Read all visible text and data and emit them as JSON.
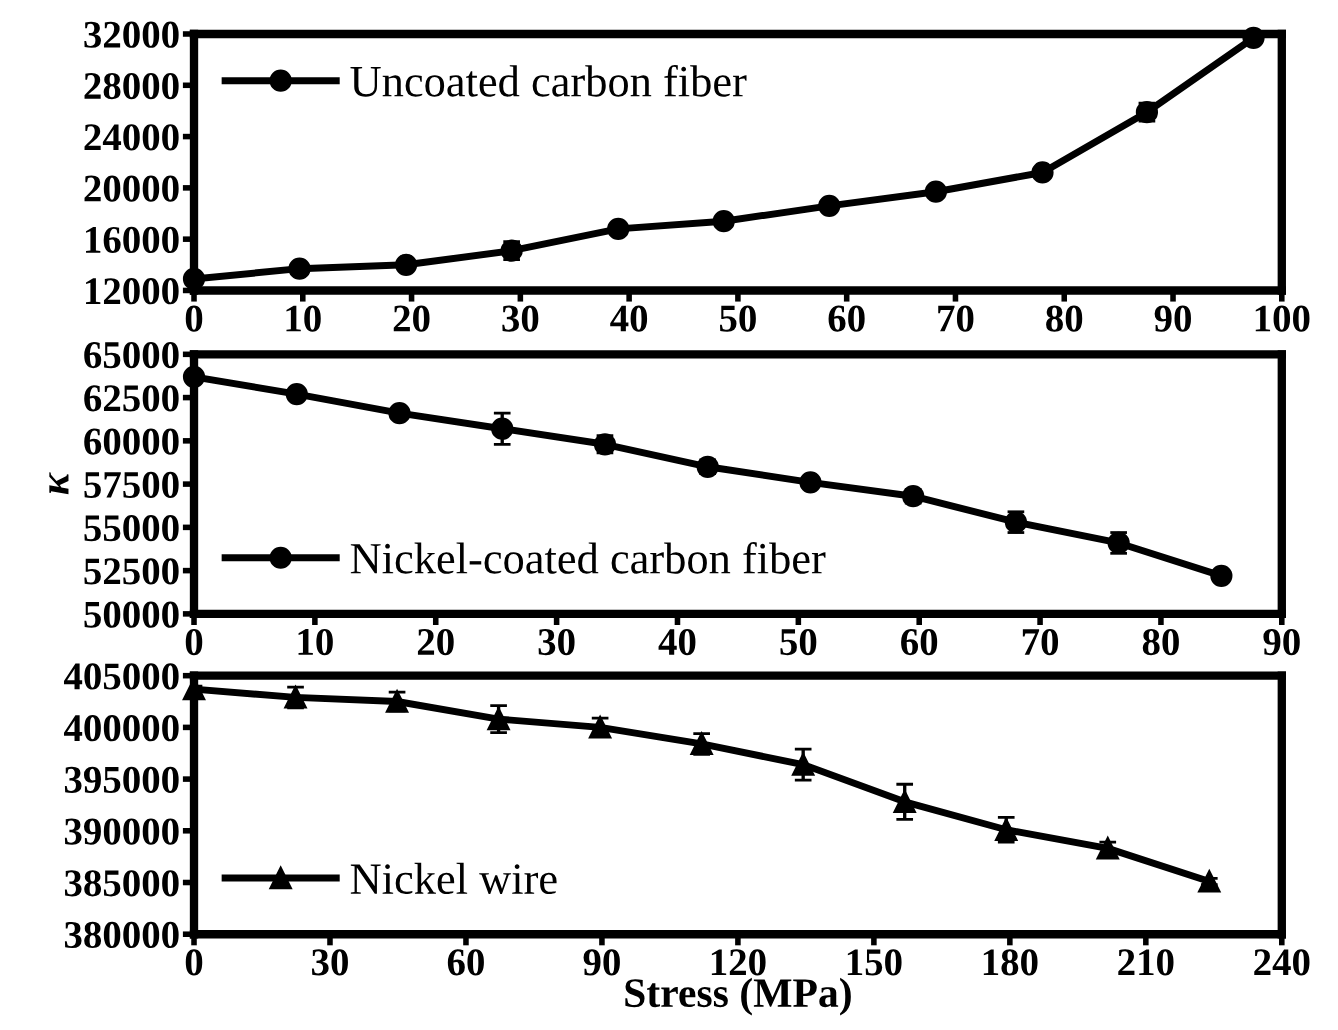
{
  "chart_data": [
    {
      "type": "line",
      "x": [
        0,
        9.7,
        19.5,
        29.2,
        39,
        48.7,
        58.4,
        68.2,
        78,
        87.6,
        97.4
      ],
      "xlim": [
        0,
        100
      ],
      "xticks": [
        0,
        10,
        20,
        30,
        40,
        50,
        60,
        70,
        80,
        90,
        100
      ],
      "ylim": [
        12000,
        32000
      ],
      "yticks": [
        12000,
        16000,
        20000,
        24000,
        28000,
        32000
      ],
      "marker": "circle",
      "legend": "top left",
      "series": [
        {
          "name": "Uncoated carbon fiber",
          "color": "#000000",
          "values": [
            12900,
            13700,
            14000,
            15100,
            16800,
            17400,
            18600,
            19700,
            21200,
            25900,
            31700
          ],
          "errors": [
            300,
            300,
            300,
            700,
            300,
            300,
            300,
            300,
            300,
            700,
            300
          ]
        }
      ]
    },
    {
      "type": "line",
      "ylabel": "κ",
      "x": [
        0,
        8.5,
        17,
        25.5,
        34,
        42.5,
        51,
        59.5,
        68,
        76.5,
        85
      ],
      "xlim": [
        0,
        90
      ],
      "xticks": [
        0,
        10,
        20,
        30,
        40,
        50,
        60,
        70,
        80,
        90
      ],
      "ylim": [
        50000,
        65000
      ],
      "yticks": [
        50000,
        52500,
        55000,
        57500,
        60000,
        62500,
        65000
      ],
      "marker": "circle",
      "legend": "bottom left",
      "series": [
        {
          "name": "Nickel-coated carbon fiber",
          "color": "#000000",
          "values": [
            63700,
            62700,
            61600,
            60700,
            59800,
            58500,
            57600,
            56800,
            55300,
            54100,
            52200
          ],
          "errors": [
            300,
            300,
            300,
            900,
            500,
            400,
            300,
            400,
            600,
            600,
            300
          ]
        }
      ]
    },
    {
      "type": "line",
      "xlabel": "Stress (MPa)",
      "x": [
        0,
        22.4,
        44.8,
        67.2,
        89.6,
        112,
        134.4,
        156.8,
        179.2,
        201.6,
        224
      ],
      "xlim": [
        0,
        240
      ],
      "xticks": [
        0,
        30,
        60,
        90,
        120,
        150,
        180,
        210,
        240
      ],
      "ylim": [
        380000,
        405000
      ],
      "yticks": [
        380000,
        385000,
        390000,
        395000,
        400000,
        405000
      ],
      "marker": "triangle",
      "legend": "bottom left",
      "series": [
        {
          "name": "Nickel wire",
          "color": "#000000",
          "values": [
            403700,
            402900,
            402500,
            400800,
            400000,
            398400,
            396400,
            392800,
            390100,
            388300,
            385100
          ],
          "errors": [
            300,
            1000,
            900,
            1300,
            900,
            1000,
            1500,
            1700,
            1200,
            600,
            300
          ]
        }
      ]
    }
  ]
}
